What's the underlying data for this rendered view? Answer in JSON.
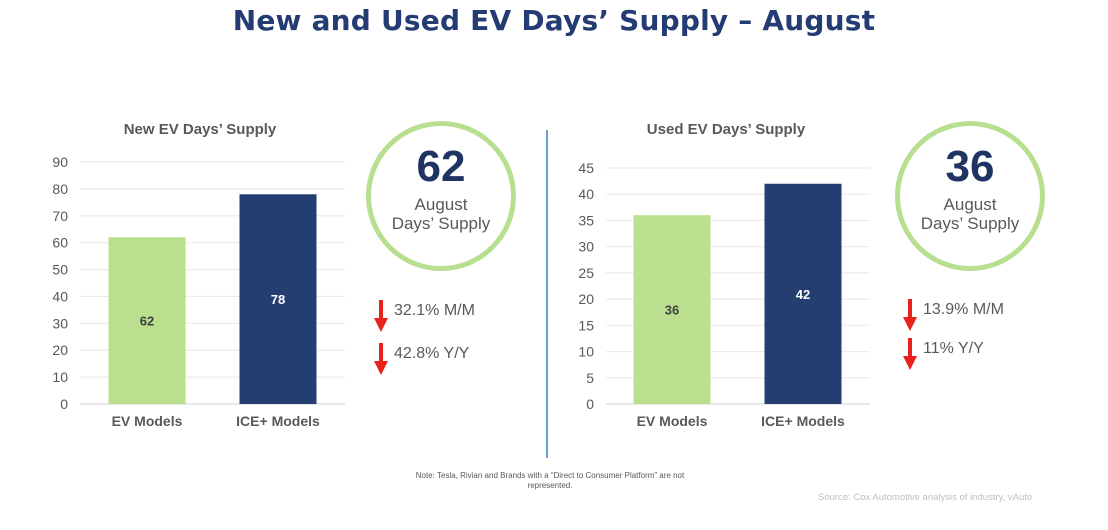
{
  "title": "New and Used EV Days’ Supply – August",
  "colors": {
    "title": "#243c73",
    "ev_bar": "#b9df8f",
    "ice_bar": "#253e72",
    "ring": "#b8df8f",
    "down_arrow": "#e8211c",
    "divider": "#6a9fd4"
  },
  "panels": {
    "new": {
      "circle": {
        "value": "62",
        "line1": "August",
        "line2": "Days’ Supply"
      },
      "changes": [
        {
          "direction": "down",
          "icon": "down-arrow-icon",
          "text": "32.1% M/M"
        },
        {
          "direction": "down",
          "icon": "down-arrow-icon",
          "text": "42.8% Y/Y"
        }
      ]
    },
    "used": {
      "circle": {
        "value": "36",
        "line1": "August",
        "line2": "Days’ Supply"
      },
      "changes": [
        {
          "direction": "down",
          "icon": "down-arrow-icon",
          "text": "13.9% M/M"
        },
        {
          "direction": "down",
          "icon": "down-arrow-icon",
          "text": "11% Y/Y"
        }
      ]
    }
  },
  "chart_data": [
    {
      "type": "bar",
      "title": "New EV Days’ Supply",
      "categories": [
        "EV Models",
        "ICE+ Models"
      ],
      "values": [
        62,
        78
      ],
      "data_labels": [
        "62",
        "78"
      ],
      "xlabel": "",
      "ylabel": "",
      "ylim": [
        0,
        90
      ],
      "yticks": [
        0,
        10,
        20,
        30,
        40,
        50,
        60,
        70,
        80,
        90
      ],
      "grid": true,
      "legend": "none"
    },
    {
      "type": "bar",
      "title": "Used EV Days’ Supply",
      "categories": [
        "EV Models",
        "ICE+ Models"
      ],
      "values": [
        36,
        42
      ],
      "data_labels": [
        "36",
        "42"
      ],
      "xlabel": "",
      "ylabel": "",
      "ylim": [
        0,
        45
      ],
      "yticks": [
        0,
        5,
        10,
        15,
        20,
        25,
        30,
        35,
        40,
        45
      ],
      "grid": true,
      "legend": "none"
    }
  ],
  "note": "Note: Tesla, Rivian and Brands with a “Direct to Consumer Platform” are not represented.",
  "source": "Source: Cox Automotive analysis of industry, vAuto"
}
